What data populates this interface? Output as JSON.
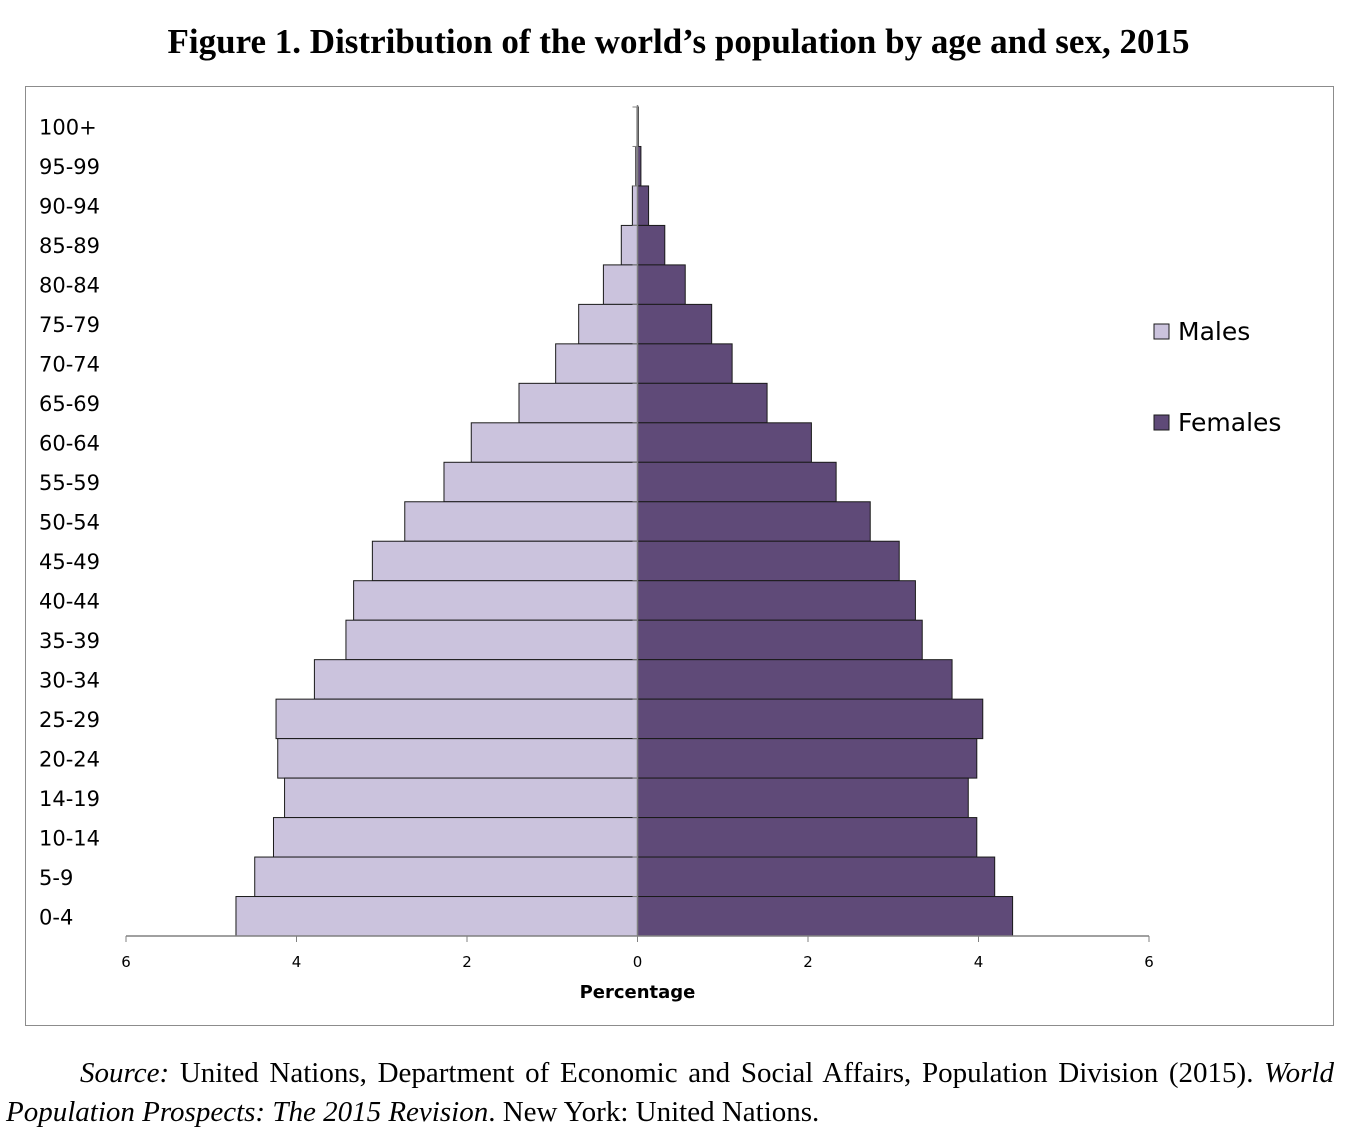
{
  "figure_title": "Figure 1.  Distribution of the world’s population by age and sex, 2015",
  "source": {
    "label": "Source:",
    "text1": " United Nations, Department of Economic and Social Affairs, Population Division (2015). ",
    "publication": "World Population Prospects: The 2015 Revision",
    "text2": ". New York: United Nations."
  },
  "colors": {
    "males": "#cbc3dd",
    "females": "#5f4a78",
    "bar_stroke": "#1a1a1a",
    "axis": "#808080"
  },
  "chart_data": {
    "type": "bar",
    "orientation": "horizontal-population-pyramid",
    "title": "Figure 1.  Distribution of the world’s population by age and sex, 2015",
    "xlabel": "Percentage",
    "ylabel": "",
    "xlim": [
      -6,
      6
    ],
    "x_ticks": [
      "6",
      "4",
      "2",
      "0",
      "2",
      "4",
      "6"
    ],
    "categories": [
      "100+",
      "95-99",
      "90-94",
      "85-89",
      "80-84",
      "75-79",
      "70-74",
      "65-69",
      "60-64",
      "55-59",
      "50-54",
      "45-49",
      "40-44",
      "35-39",
      "30-34",
      "25-29",
      "20-24",
      "14-19",
      "10-14",
      "5-9",
      "0-4"
    ],
    "series": [
      {
        "name": "Males",
        "values": [
          0.005,
          0.02,
          0.06,
          0.19,
          0.4,
          0.69,
          0.96,
          1.39,
          1.95,
          2.27,
          2.73,
          3.11,
          3.33,
          3.42,
          3.79,
          4.24,
          4.22,
          4.14,
          4.27,
          4.49,
          4.71
        ]
      },
      {
        "name": "Females",
        "values": [
          0.01,
          0.04,
          0.13,
          0.32,
          0.56,
          0.87,
          1.11,
          1.52,
          2.04,
          2.33,
          2.73,
          3.07,
          3.26,
          3.34,
          3.69,
          4.05,
          3.98,
          3.88,
          3.98,
          4.19,
          4.4
        ]
      }
    ],
    "legend_position": "right",
    "grid": false
  }
}
